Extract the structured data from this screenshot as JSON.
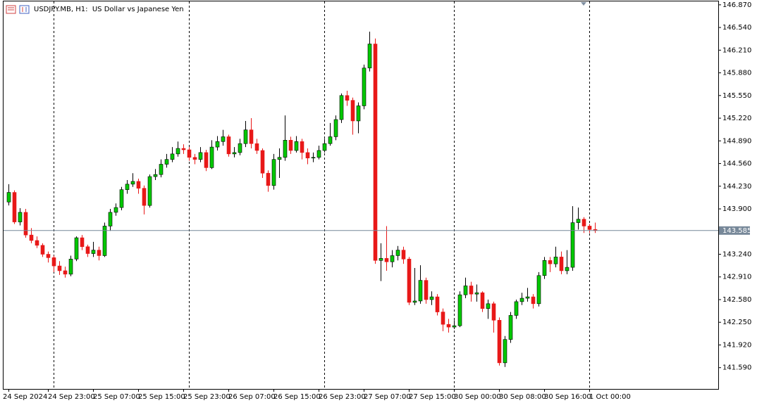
{
  "chart_data": {
    "type": "candlestick",
    "title": "USDJPY.MB, H1:  US Dollar vs Japanese Yen",
    "categories": [
      "24 Sep 2024",
      null,
      null,
      null,
      null,
      null,
      null,
      "24 Sep 23:00",
      null,
      null,
      null,
      null,
      null,
      null,
      null,
      "25 Sep 07:00",
      null,
      null,
      null,
      null,
      null,
      null,
      null,
      "25 Sep 15:00",
      null,
      null,
      null,
      null,
      null,
      null,
      null,
      "25 Sep 23:00",
      null,
      null,
      null,
      null,
      null,
      null,
      null,
      "26 Sep 07:00",
      null,
      null,
      null,
      null,
      null,
      null,
      null,
      "26 Sep 15:00",
      null,
      null,
      null,
      null,
      null,
      null,
      null,
      "26 Sep 23:00",
      null,
      null,
      null,
      null,
      null,
      null,
      null,
      "27 Sep 07:00",
      null,
      null,
      null,
      null,
      null,
      null,
      null,
      "27 Sep 15:00",
      null,
      null,
      null,
      null,
      null,
      null,
      null,
      "30 Sep 00:00",
      null,
      null,
      null,
      null,
      null,
      null,
      null,
      "30 Sep 08:00",
      null,
      null,
      null,
      null,
      null,
      null,
      null,
      "30 Sep 16:00",
      null,
      null,
      null,
      null,
      null,
      null,
      null,
      "1 Oct 00:00",
      null
    ],
    "open": [
      144.0,
      144.14,
      143.71,
      143.85,
      143.52,
      143.44,
      143.37,
      143.24,
      143.19,
      143.07,
      143.0,
      142.95,
      143.17,
      143.48,
      143.35,
      143.25,
      143.3,
      143.22,
      143.65,
      143.85,
      143.92,
      144.18,
      144.26,
      144.3,
      144.2,
      143.95,
      144.37,
      144.4,
      144.55,
      144.62,
      144.7,
      144.78,
      144.76,
      144.65,
      144.62,
      144.72,
      144.5,
      144.8,
      144.88,
      144.95,
      144.7,
      144.72,
      144.85,
      145.05,
      144.85,
      144.75,
      144.42,
      144.24,
      144.62,
      144.65,
      144.9,
      144.75,
      144.88,
      144.72,
      144.64,
      144.65,
      144.75,
      144.85,
      144.95,
      145.2,
      145.55,
      145.48,
      145.18,
      145.4,
      145.95,
      146.3,
      143.15,
      143.18,
      143.13,
      143.22,
      143.3,
      143.17,
      142.54,
      142.56,
      142.86,
      142.58,
      142.62,
      142.4,
      142.22,
      142.18,
      142.2,
      142.65,
      142.78,
      142.66,
      142.68,
      142.45,
      142.52,
      142.28,
      141.66,
      142.0,
      142.35,
      142.55,
      142.6,
      142.62,
      142.52,
      142.93,
      143.15,
      143.1,
      143.2,
      143.0,
      143.05,
      143.7,
      143.75,
      143.65,
      143.6
    ],
    "high": [
      144.26,
      144.17,
      143.91,
      143.9,
      143.62,
      143.5,
      143.4,
      143.28,
      143.22,
      143.14,
      143.06,
      143.22,
      143.5,
      143.52,
      143.38,
      143.42,
      143.35,
      143.7,
      143.9,
      143.98,
      144.22,
      144.32,
      144.42,
      144.34,
      144.24,
      144.4,
      144.48,
      144.62,
      144.7,
      144.8,
      144.88,
      144.84,
      144.8,
      144.7,
      144.8,
      144.76,
      144.9,
      144.96,
      145.05,
      144.98,
      144.8,
      144.92,
      145.18,
      145.22,
      144.92,
      144.78,
      144.46,
      144.7,
      144.78,
      145.26,
      144.95,
      144.96,
      144.92,
      144.78,
      144.72,
      144.82,
      144.92,
      145.15,
      145.26,
      145.58,
      145.62,
      145.52,
      145.45,
      146.0,
      146.48,
      146.38,
      143.4,
      143.65,
      143.3,
      143.36,
      143.35,
      143.2,
      143.04,
      143.08,
      142.9,
      142.7,
      142.66,
      142.45,
      142.3,
      142.28,
      142.7,
      142.9,
      142.84,
      142.8,
      142.7,
      142.58,
      142.55,
      142.32,
      142.05,
      142.4,
      142.58,
      142.68,
      142.75,
      142.66,
      142.98,
      143.2,
      143.2,
      143.35,
      143.28,
      143.3,
      143.94,
      143.92,
      143.78,
      143.68,
      143.7
    ],
    "low": [
      143.95,
      143.68,
      143.66,
      143.48,
      143.4,
      143.33,
      143.2,
      143.12,
      142.98,
      142.94,
      142.9,
      142.92,
      143.14,
      143.3,
      143.2,
      143.2,
      143.15,
      143.2,
      143.58,
      143.8,
      143.88,
      144.12,
      144.22,
      144.12,
      143.82,
      143.92,
      144.32,
      144.36,
      144.5,
      144.58,
      144.66,
      144.7,
      144.6,
      144.55,
      144.58,
      144.45,
      144.48,
      144.75,
      144.82,
      144.66,
      144.65,
      144.68,
      144.8,
      144.78,
      144.7,
      144.35,
      144.15,
      144.18,
      144.35,
      144.6,
      144.7,
      144.72,
      144.62,
      144.55,
      144.58,
      144.62,
      144.72,
      144.82,
      144.9,
      145.15,
      145.4,
      144.98,
      145.0,
      145.35,
      145.9,
      143.1,
      142.85,
      143.0,
      143.05,
      143.15,
      143.1,
      142.5,
      142.5,
      142.52,
      142.52,
      142.5,
      142.35,
      142.12,
      142.1,
      142.15,
      142.18,
      142.6,
      142.55,
      142.55,
      142.4,
      142.3,
      142.1,
      141.62,
      141.6,
      141.95,
      142.3,
      142.5,
      142.55,
      142.45,
      142.48,
      142.88,
      142.98,
      143.05,
      142.95,
      142.95,
      143.0,
      143.6,
      143.55,
      143.55,
      143.55
    ],
    "close": [
      144.14,
      143.71,
      143.85,
      143.52,
      143.44,
      143.37,
      143.24,
      143.19,
      143.07,
      143.0,
      142.95,
      143.17,
      143.48,
      143.35,
      143.25,
      143.3,
      143.22,
      143.65,
      143.85,
      143.92,
      144.18,
      144.26,
      144.3,
      144.2,
      143.95,
      144.37,
      144.4,
      144.55,
      144.62,
      144.7,
      144.78,
      144.76,
      144.65,
      144.62,
      144.72,
      144.5,
      144.8,
      144.88,
      144.95,
      144.7,
      144.72,
      144.85,
      145.05,
      144.85,
      144.75,
      144.42,
      144.24,
      144.62,
      144.65,
      144.9,
      144.75,
      144.88,
      144.72,
      144.64,
      144.65,
      144.75,
      144.85,
      144.95,
      145.2,
      145.55,
      145.48,
      145.18,
      145.4,
      145.95,
      146.3,
      143.15,
      143.18,
      143.13,
      143.22,
      143.3,
      143.17,
      142.54,
      142.56,
      142.86,
      142.58,
      142.62,
      142.4,
      142.22,
      142.18,
      142.2,
      142.65,
      142.78,
      142.66,
      142.68,
      142.45,
      142.52,
      142.28,
      141.66,
      142.0,
      142.35,
      142.55,
      142.6,
      142.62,
      142.52,
      142.93,
      143.15,
      143.1,
      143.2,
      143.0,
      143.05,
      143.7,
      143.75,
      143.65,
      143.6,
      143.585
    ],
    "up_color": "#00c800",
    "down_color": "#e81818",
    "current_price": 143.585,
    "ylim": [
      141.28,
      146.94
    ],
    "yticks": [
      {
        "value": 146.87,
        "label": "146.870"
      },
      {
        "value": 146.54,
        "label": "146.540"
      },
      {
        "value": 146.21,
        "label": "146.210"
      },
      {
        "value": 145.88,
        "label": "145.880"
      },
      {
        "value": 145.55,
        "label": "145.550"
      },
      {
        "value": 145.22,
        "label": "145.220"
      },
      {
        "value": 144.89,
        "label": "144.890"
      },
      {
        "value": 144.56,
        "label": "144.560"
      },
      {
        "value": 144.23,
        "label": "144.230"
      },
      {
        "value": 143.9,
        "label": "143.900"
      },
      {
        "value": 143.24,
        "label": "143.240"
      },
      {
        "value": 142.91,
        "label": "142.910"
      },
      {
        "value": 142.58,
        "label": "142.580"
      },
      {
        "value": 142.25,
        "label": "142.250"
      },
      {
        "value": 141.92,
        "label": "141.920"
      },
      {
        "value": 141.59,
        "label": "141.590"
      }
    ]
  }
}
